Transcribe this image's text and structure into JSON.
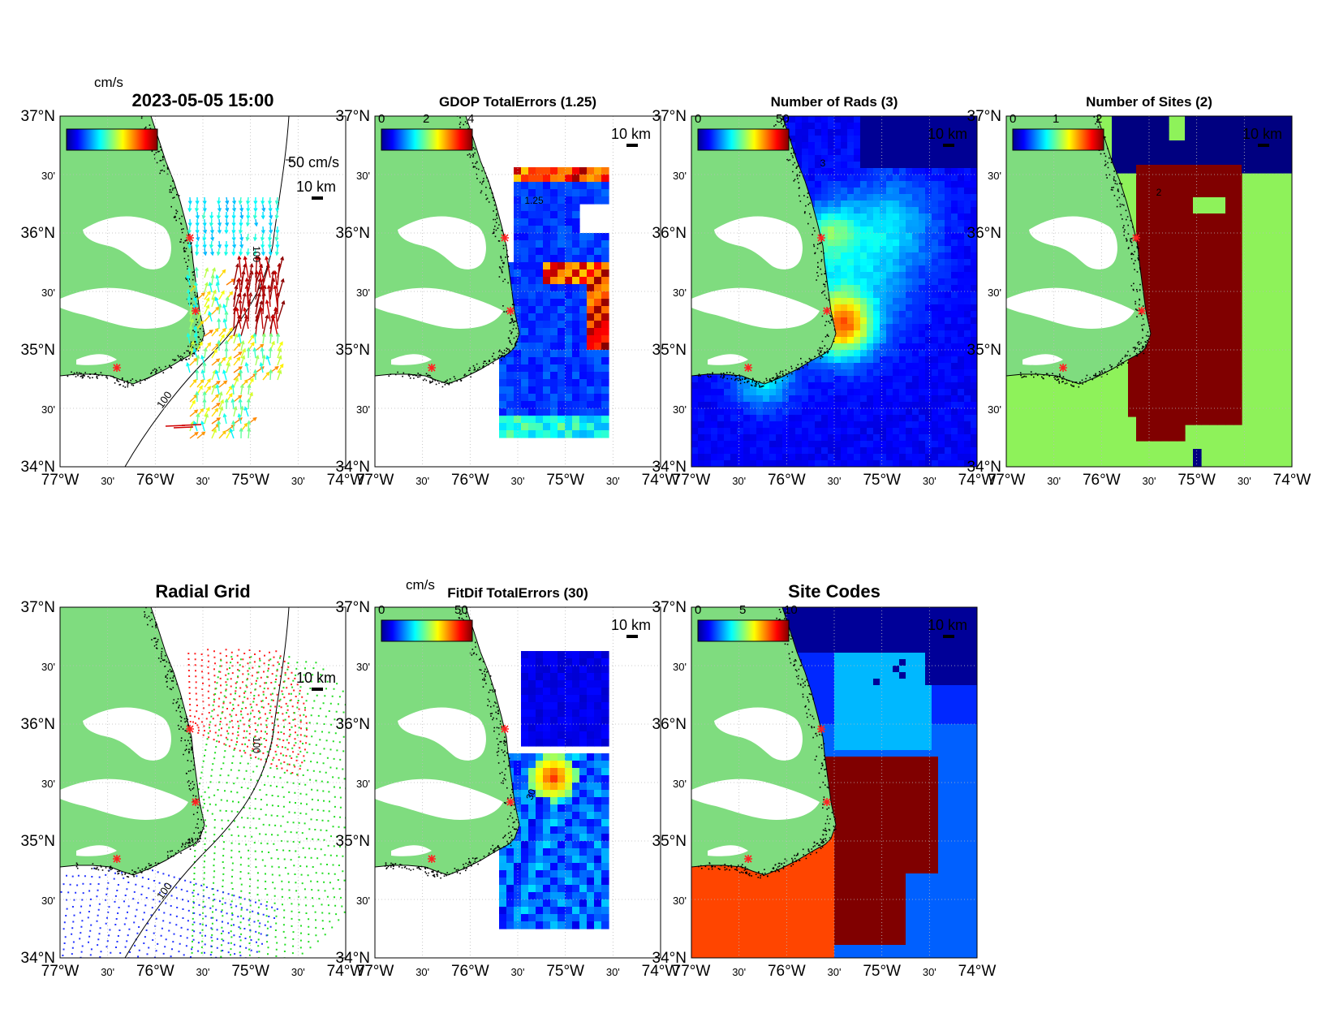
{
  "panels": [
    {
      "id": "currents",
      "title": "2023-05-05 15:00",
      "colorbar_label": "cm/s",
      "scale_label": "10 km",
      "vector_label": "50 cm/s",
      "contour_label": "100",
      "mode": "vectors"
    },
    {
      "id": "gdop",
      "title": "GDOP TotalErrors (1.25)",
      "colorbar_ticks": [
        "0",
        "2",
        "4"
      ],
      "scale_label": "10 km",
      "contour_label": "1.25",
      "mode": "gdop"
    },
    {
      "id": "rads",
      "title": "Number of Rads (3)",
      "colorbar_ticks": [
        "0",
        "50"
      ],
      "scale_label": "10 km",
      "contour_label": "3",
      "mode": "rads"
    },
    {
      "id": "sites",
      "title": "Number of Sites (2)",
      "colorbar_ticks": [
        "0",
        "1",
        "2"
      ],
      "scale_label": "10 km",
      "contour_label": "2",
      "mode": "sites"
    },
    {
      "id": "radial-grid",
      "title": "Radial Grid",
      "scale_label": "10 km",
      "contour_label": "100",
      "mode": "grid"
    },
    {
      "id": "fitdif",
      "title": "FitDif TotalErrors (30)",
      "colorbar_label": "cm/s",
      "colorbar_ticks": [
        "0",
        "50"
      ],
      "scale_label": "10 km",
      "contour_label": "30",
      "mode": "fitdif"
    },
    {
      "id": "site-codes",
      "title": "Site Codes",
      "colorbar_ticks": [
        "0",
        "5",
        "10"
      ],
      "scale_label": "10 km",
      "mode": "codes"
    }
  ],
  "axes": {
    "lon_ticks": [
      "77°W",
      "30'",
      "76°W",
      "30'",
      "75°W",
      "30'",
      "74°W"
    ],
    "lat_ticks": [
      "37°N",
      "30'",
      "36°N",
      "30'",
      "35°N",
      "30'",
      "34°N"
    ]
  },
  "colors": {
    "land": "#7fdc7f",
    "site_marker": "#ff2222",
    "grid_site_1": "#ff2222",
    "grid_site_2": "#22dd22",
    "grid_site_3": "#2233ff",
    "sites_bg": "#8ef25a",
    "sites_high": "#800000",
    "sites_low": "#000080"
  }
}
